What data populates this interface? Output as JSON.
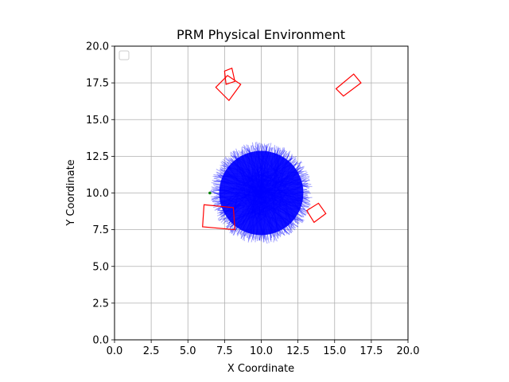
{
  "chart_data": {
    "type": "scatter",
    "title": "PRM Physical Environment",
    "xlabel": "X Coordinate",
    "ylabel": "Y Coordinate",
    "xlim": [
      0,
      20
    ],
    "ylim": [
      0,
      20
    ],
    "xticks": [
      "0.0",
      "2.5",
      "5.0",
      "7.5",
      "10.0",
      "12.5",
      "15.0",
      "17.5",
      "20.0"
    ],
    "yticks": [
      "0.0",
      "2.5",
      "5.0",
      "7.5",
      "10.0",
      "12.5",
      "15.0",
      "17.5",
      "20.0"
    ],
    "grid": true,
    "legend": {
      "placement": "top-left",
      "entries": []
    },
    "roadmap_edges": {
      "color": "#0000ff",
      "center": [
        10,
        10
      ],
      "max_radius": 3.5,
      "start_node": {
        "x": 6.5,
        "y": 10.0,
        "color": "#008000"
      }
    },
    "obstacles": {
      "color": "#ff0000",
      "rectangles": [
        {
          "corners": [
            [
              6.1,
              9.2
            ],
            [
              8.1,
              9.0
            ],
            [
              8.2,
              7.5
            ],
            [
              6.0,
              7.7
            ]
          ]
        },
        {
          "corners": [
            [
              13.1,
              8.8
            ],
            [
              13.9,
              9.3
            ],
            [
              14.4,
              8.6
            ],
            [
              13.6,
              8.0
            ]
          ]
        },
        {
          "corners": [
            [
              6.9,
              17.2
            ],
            [
              7.7,
              18.0
            ],
            [
              8.6,
              17.4
            ],
            [
              7.8,
              16.3
            ]
          ]
        },
        {
          "corners": [
            [
              7.5,
              18.3
            ],
            [
              8.0,
              18.5
            ],
            [
              8.2,
              17.6
            ],
            [
              7.6,
              17.4
            ]
          ]
        },
        {
          "corners": [
            [
              15.1,
              17.1
            ],
            [
              16.3,
              18.1
            ],
            [
              16.8,
              17.5
            ],
            [
              15.6,
              16.6
            ]
          ]
        }
      ]
    }
  }
}
